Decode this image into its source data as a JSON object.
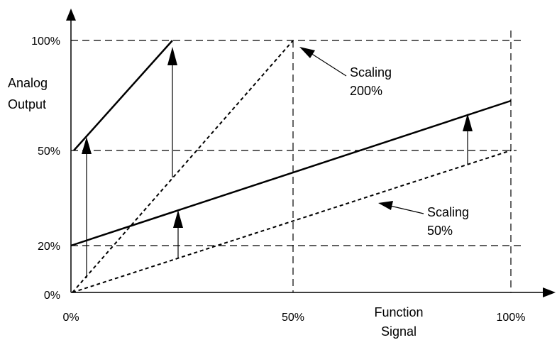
{
  "axes": {
    "y_title_line1": "Analog",
    "y_title_line2": "Output",
    "x_title_line1": "Function",
    "x_title_line2": "Signal",
    "y_ticks": [
      "0%",
      "20%",
      "50%",
      "100%"
    ],
    "x_ticks": [
      "0%",
      "50%",
      "100%"
    ]
  },
  "annotations": {
    "scaling_200_line1": "Scaling",
    "scaling_200_line2": "200%",
    "scaling_50_line1": "Scaling",
    "scaling_50_line2": "50%"
  },
  "colors": {
    "ink": "#000000",
    "background": "#ffffff"
  },
  "lines": {
    "base_200_dotted": {
      "from": [
        0,
        0
      ],
      "to": [
        50,
        100
      ]
    },
    "base_50_dotted": {
      "from": [
        0,
        0
      ],
      "to": [
        100,
        50
      ]
    },
    "scaled_200_solid": {
      "from": [
        0,
        50
      ],
      "to": [
        23,
        100
      ]
    },
    "scaled_50_solid": {
      "from": [
        0,
        20
      ],
      "to": [
        100,
        70
      ]
    }
  }
}
